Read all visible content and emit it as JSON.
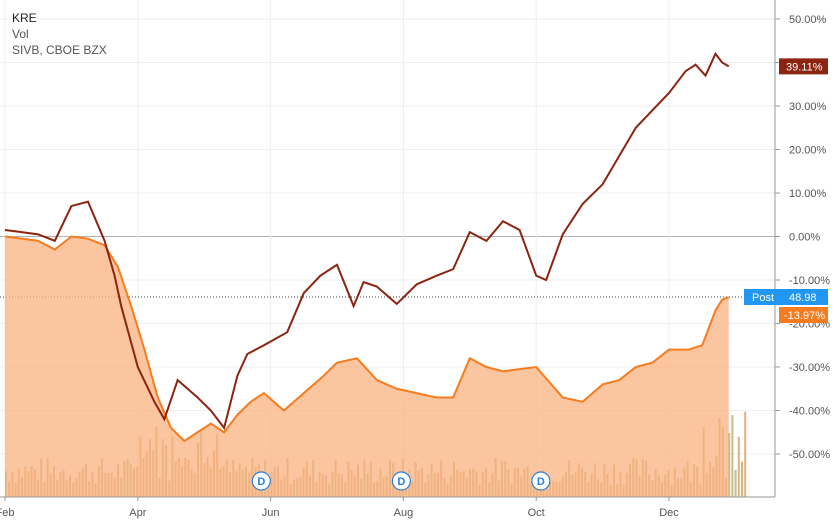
{
  "legend": {
    "symbol": "KRE",
    "indicator": "Vol",
    "compare": "SIVB, CBOE BZX"
  },
  "colors": {
    "kre_line": "#f57c1f",
    "kre_fill": "#f9b27f",
    "sivb_line": "#8b2410",
    "vol_bar": "#d5a46a",
    "vol_bar_green": "#b9b27a",
    "grid": "#efefef",
    "zero_line": "#b0b0b0",
    "post_badge": "#2196f3",
    "dividend": "#2b7fd6"
  },
  "badges": {
    "sivb": "39.11%",
    "post_label": "Post",
    "post_value": "48.98",
    "kre": "-13.97%"
  },
  "dividend_label": "D",
  "chart_data": {
    "type": "line",
    "title": "",
    "x_ticks": [
      "Feb",
      "Apr",
      "Jun",
      "Aug",
      "Oct",
      "Dec"
    ],
    "y_ticks": [
      "50.00%",
      "40.00%",
      "30.00%",
      "20.00%",
      "10.00%",
      "0.00%",
      "-10.00%",
      "-20.00%",
      "-30.00%",
      "-40.00%",
      "-50.00%"
    ],
    "ylim": [
      -57,
      52
    ],
    "xlim": [
      0,
      11.5
    ],
    "grid": true,
    "dividends_x": [
      3.86,
      5.97,
      8.07
    ],
    "series": [
      {
        "name": "SIVB",
        "x": [
          0.0,
          0.25,
          0.5,
          0.75,
          1.0,
          1.25,
          1.5,
          1.65,
          1.75,
          2.0,
          2.25,
          2.4,
          2.6,
          2.9,
          3.1,
          3.3,
          3.5,
          3.65,
          3.9,
          4.25,
          4.5,
          4.75,
          5.0,
          5.25,
          5.4,
          5.6,
          5.9,
          6.2,
          6.5,
          6.75,
          7.0,
          7.25,
          7.5,
          7.75,
          8.0,
          8.15,
          8.4,
          8.7,
          9.0,
          9.25,
          9.5,
          9.75,
          10.0,
          10.25,
          10.4,
          10.55,
          10.7,
          10.8,
          10.9
        ],
        "values": [
          1.5,
          1.0,
          0.5,
          -1.0,
          7.0,
          8.0,
          -1.0,
          -9.0,
          -16.0,
          -30.0,
          -38.0,
          -42.0,
          -33.0,
          -37.0,
          -40.0,
          -44.0,
          -32.0,
          -27.0,
          -25.0,
          -22.0,
          -13.0,
          -9.0,
          -6.5,
          -16.0,
          -10.5,
          -11.5,
          -15.5,
          -11.0,
          -9.0,
          -7.5,
          1.0,
          -1.0,
          3.5,
          1.5,
          -9.0,
          -10.0,
          0.5,
          7.5,
          12.0,
          18.5,
          25.0,
          29.0,
          33.0,
          38.0,
          39.5,
          37.0,
          42.0,
          40.0,
          39.11
        ]
      },
      {
        "name": "KRE",
        "x": [
          0.0,
          0.25,
          0.5,
          0.75,
          1.0,
          1.25,
          1.5,
          1.7,
          1.9,
          2.1,
          2.3,
          2.5,
          2.7,
          2.9,
          3.1,
          3.3,
          3.5,
          3.7,
          3.9,
          4.2,
          4.5,
          4.8,
          5.0,
          5.3,
          5.6,
          5.9,
          6.2,
          6.5,
          6.75,
          7.0,
          7.25,
          7.5,
          7.75,
          8.0,
          8.2,
          8.4,
          8.7,
          9.0,
          9.25,
          9.5,
          9.75,
          10.0,
          10.3,
          10.5,
          10.7,
          10.8,
          10.9
        ],
        "values": [
          0.0,
          -0.5,
          -1.0,
          -3.0,
          0.0,
          -0.5,
          -2.0,
          -7.0,
          -16.0,
          -26.0,
          -37.0,
          -44.0,
          -47.0,
          -45.0,
          -43.0,
          -45.0,
          -41.0,
          -38.0,
          -36.0,
          -40.0,
          -36.0,
          -32.0,
          -29.0,
          -28.0,
          -33.0,
          -35.0,
          -36.0,
          -37.0,
          -37.0,
          -28.0,
          -30.0,
          -31.0,
          -30.5,
          -30.0,
          -33.5,
          -37.0,
          -38.0,
          -34.0,
          -33.0,
          -30.0,
          -29.0,
          -26.0,
          -26.0,
          -25.0,
          -17.0,
          -14.5,
          -13.97
        ]
      }
    ]
  }
}
